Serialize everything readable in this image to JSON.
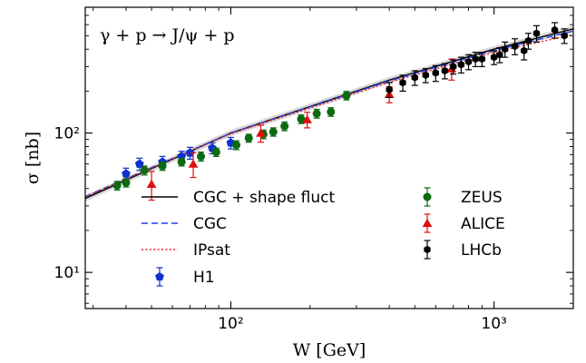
{
  "chart_data": {
    "type": "scatter",
    "title": "γ + p → J/ψ + p",
    "xlabel": "W [GeV]",
    "ylabel": "σ [nb]",
    "xscale": "log",
    "yscale": "log",
    "xlim": [
      28,
      2000
    ],
    "ylim": [
      5.5,
      800
    ],
    "x_ticks": [
      {
        "value": 100,
        "label": "10²"
      },
      {
        "value": 1000,
        "label": "10³"
      }
    ],
    "y_ticks": [
      {
        "value": 10,
        "label": "10¹"
      },
      {
        "value": 100,
        "label": "10²"
      }
    ],
    "grid": false,
    "legend_position": "lower-right",
    "series": [
      {
        "name": "CGC + shape fluct",
        "kind": "line",
        "style": "solid",
        "color": "#000000",
        "band": true,
        "x": [
          28,
          100,
          400,
          1000,
          2000
        ],
        "y": [
          34,
          100,
          240,
          400,
          560
        ]
      },
      {
        "name": "CGC",
        "kind": "line",
        "style": "dashed",
        "color": "#1f3fff",
        "x": [
          28,
          100,
          400,
          1000,
          2000
        ],
        "y": [
          35,
          100,
          237,
          392,
          540
        ]
      },
      {
        "name": "IPsat",
        "kind": "line",
        "style": "dotted",
        "color": "#e82020",
        "x": [
          28,
          100,
          400,
          1000,
          2000
        ],
        "y": [
          35,
          99,
          232,
          380,
          510
        ]
      },
      {
        "name": "H1",
        "kind": "points",
        "marker": "pentagon",
        "color": "#1030d0",
        "points": [
          {
            "x": 40,
            "y": 51,
            "err": 5
          },
          {
            "x": 45,
            "y": 60,
            "err": 6
          },
          {
            "x": 55,
            "y": 62,
            "err": 6
          },
          {
            "x": 65,
            "y": 68,
            "err": 6
          },
          {
            "x": 70,
            "y": 72,
            "err": 7
          },
          {
            "x": 85,
            "y": 78,
            "err": 7
          },
          {
            "x": 100,
            "y": 85,
            "err": 8
          }
        ]
      },
      {
        "name": "ZEUS",
        "kind": "points",
        "marker": "circle",
        "color": "#0c6a10",
        "points": [
          {
            "x": 37,
            "y": 42,
            "err": 3
          },
          {
            "x": 40,
            "y": 44,
            "err": 3
          },
          {
            "x": 47,
            "y": 54,
            "err": 4
          },
          {
            "x": 55,
            "y": 58,
            "err": 4
          },
          {
            "x": 65,
            "y": 62,
            "err": 4
          },
          {
            "x": 77,
            "y": 68,
            "err": 5
          },
          {
            "x": 88,
            "y": 73,
            "err": 5
          },
          {
            "x": 105,
            "y": 82,
            "err": 6
          },
          {
            "x": 117,
            "y": 92,
            "err": 6
          },
          {
            "x": 133,
            "y": 98,
            "err": 7
          },
          {
            "x": 145,
            "y": 102,
            "err": 7
          },
          {
            "x": 160,
            "y": 112,
            "err": 8
          },
          {
            "x": 185,
            "y": 126,
            "err": 9
          },
          {
            "x": 212,
            "y": 138,
            "err": 10
          },
          {
            "x": 240,
            "y": 142,
            "err": 10
          },
          {
            "x": 275,
            "y": 186,
            "err": 13
          }
        ]
      },
      {
        "name": "ALICE",
        "kind": "points",
        "marker": "triangle",
        "color": "#e01010",
        "points": [
          {
            "x": 50,
            "y": 43,
            "err": 10
          },
          {
            "x": 72,
            "y": 60,
            "err": 12
          },
          {
            "x": 130,
            "y": 100,
            "err": 14
          },
          {
            "x": 195,
            "y": 125,
            "err": 16
          },
          {
            "x": 400,
            "y": 190,
            "err": 25
          },
          {
            "x": 690,
            "y": 290,
            "err": 50
          }
        ]
      },
      {
        "name": "LHCb",
        "kind": "points",
        "marker": "hexagon",
        "color": "#000000",
        "points": [
          {
            "x": 400,
            "y": 205,
            "err": 25
          },
          {
            "x": 450,
            "y": 230,
            "err": 30
          },
          {
            "x": 500,
            "y": 250,
            "err": 30
          },
          {
            "x": 550,
            "y": 260,
            "err": 30
          },
          {
            "x": 600,
            "y": 270,
            "err": 35
          },
          {
            "x": 650,
            "y": 280,
            "err": 35
          },
          {
            "x": 700,
            "y": 300,
            "err": 35
          },
          {
            "x": 750,
            "y": 310,
            "err": 40
          },
          {
            "x": 800,
            "y": 325,
            "err": 40
          },
          {
            "x": 850,
            "y": 340,
            "err": 40
          },
          {
            "x": 900,
            "y": 340,
            "err": 40
          },
          {
            "x": 1000,
            "y": 350,
            "err": 40
          },
          {
            "x": 1050,
            "y": 365,
            "err": 45
          },
          {
            "x": 1100,
            "y": 400,
            "err": 50
          },
          {
            "x": 1200,
            "y": 420,
            "err": 55
          },
          {
            "x": 1300,
            "y": 390,
            "err": 55
          },
          {
            "x": 1350,
            "y": 460,
            "err": 60
          },
          {
            "x": 1450,
            "y": 520,
            "err": 70
          },
          {
            "x": 1700,
            "y": 550,
            "err": 70
          },
          {
            "x": 1850,
            "y": 500,
            "err": 60
          }
        ]
      }
    ]
  }
}
